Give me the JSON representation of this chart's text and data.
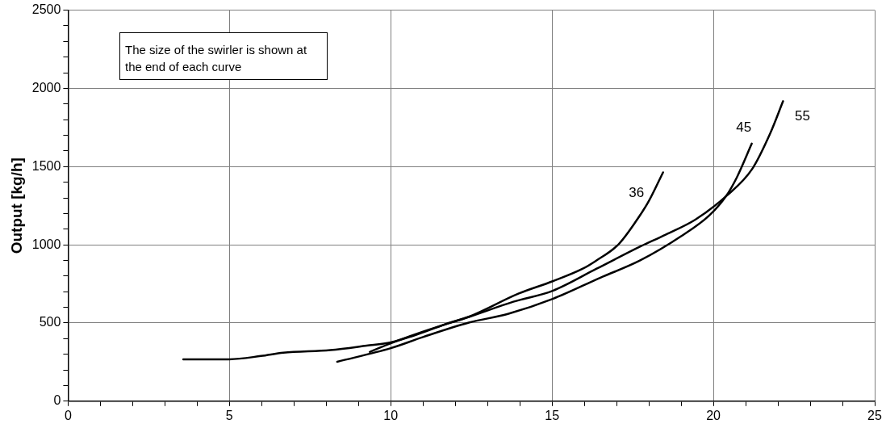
{
  "chart_data": {
    "type": "line",
    "ylabel": "Output [kg/h]",
    "xlim": [
      0,
      25
    ],
    "ylim": [
      0,
      2500
    ],
    "xticks": [
      0,
      {
        "value": 1,
        "label": null
      },
      {
        "value": 2,
        "label": null
      },
      {
        "value": 3,
        "label": null
      },
      {
        "value": 4,
        "label": null
      },
      5,
      {
        "value": 6,
        "label": null
      },
      {
        "value": 7,
        "label": null
      },
      {
        "value": 8,
        "label": null
      },
      {
        "value": 9,
        "label": null
      },
      10,
      {
        "value": 11,
        "label": null
      },
      {
        "value": 12,
        "label": null
      },
      {
        "value": 13,
        "label": null
      },
      {
        "value": 14,
        "label": null
      },
      15,
      {
        "value": 16,
        "label": null
      },
      {
        "value": 17,
        "label": null
      },
      {
        "value": 18,
        "label": null
      },
      {
        "value": 19,
        "label": null
      },
      20,
      {
        "value": 21,
        "label": null
      },
      {
        "value": 22,
        "label": null
      },
      {
        "value": 23,
        "label": null
      },
      {
        "value": 24,
        "label": null
      },
      25
    ],
    "yticks": [
      0,
      {
        "value": 100,
        "label": null
      },
      {
        "value": 200,
        "label": null
      },
      {
        "value": 300,
        "label": null
      },
      {
        "value": 400,
        "label": null
      },
      500,
      {
        "value": 600,
        "label": null
      },
      {
        "value": 700,
        "label": null
      },
      {
        "value": 800,
        "label": null
      },
      {
        "value": 900,
        "label": null
      },
      1000,
      {
        "value": 1100,
        "label": null
      },
      {
        "value": 1200,
        "label": null
      },
      {
        "value": 1300,
        "label": null
      },
      {
        "value": 1400,
        "label": null
      },
      1500,
      {
        "value": 1600,
        "label": null
      },
      {
        "value": 1700,
        "label": null
      },
      {
        "value": 1800,
        "label": null
      },
      {
        "value": 1900,
        "label": null
      },
      2000,
      {
        "value": 2100,
        "label": null
      },
      {
        "value": 2200,
        "label": null
      },
      {
        "value": 2300,
        "label": null
      },
      {
        "value": 2400,
        "label": null
      },
      2500
    ],
    "grid": true,
    "legend": false,
    "marker": "none",
    "line_style": "solid",
    "series": [
      {
        "name": "36",
        "color": "#000000",
        "x": [
          3.57,
          5,
          5.98,
          6.67,
          8.13,
          9.25,
          10,
          11,
          11.74,
          12.42,
          13.97,
          15.02,
          15.94,
          16.37,
          17.06,
          17.6,
          18.0,
          18.44
        ],
        "values": [
          268,
          268,
          289,
          310,
          327,
          355,
          376,
          440,
          496,
          540,
          689,
          767,
          846,
          899,
          1003,
          1150,
          1280,
          1463
        ]
      },
      {
        "name": "45",
        "color": "#000000",
        "x": [
          8.34,
          10,
          11,
          12.42,
          13.63,
          15.02,
          16.5,
          17.72,
          19.01,
          19.87,
          20.39,
          20.73,
          21.19
        ],
        "values": [
          252,
          339,
          410,
          502,
          558,
          654,
          790,
          899,
          1056,
          1187,
          1310,
          1432,
          1647
        ]
      },
      {
        "name": "55",
        "color": "#000000",
        "x": [
          9.35,
          10,
          11,
          12.44,
          13.8,
          15.02,
          16.37,
          17.75,
          18.52,
          19.44,
          20.39,
          21.2,
          21.76,
          22.16
        ],
        "values": [
          315,
          370,
          445,
          540,
          636,
          706,
          846,
          991,
          1065,
          1161,
          1310,
          1484,
          1712,
          1918
        ]
      }
    ],
    "annotations": [
      "The size of the swirler is shown at the end of each curve"
    ]
  }
}
